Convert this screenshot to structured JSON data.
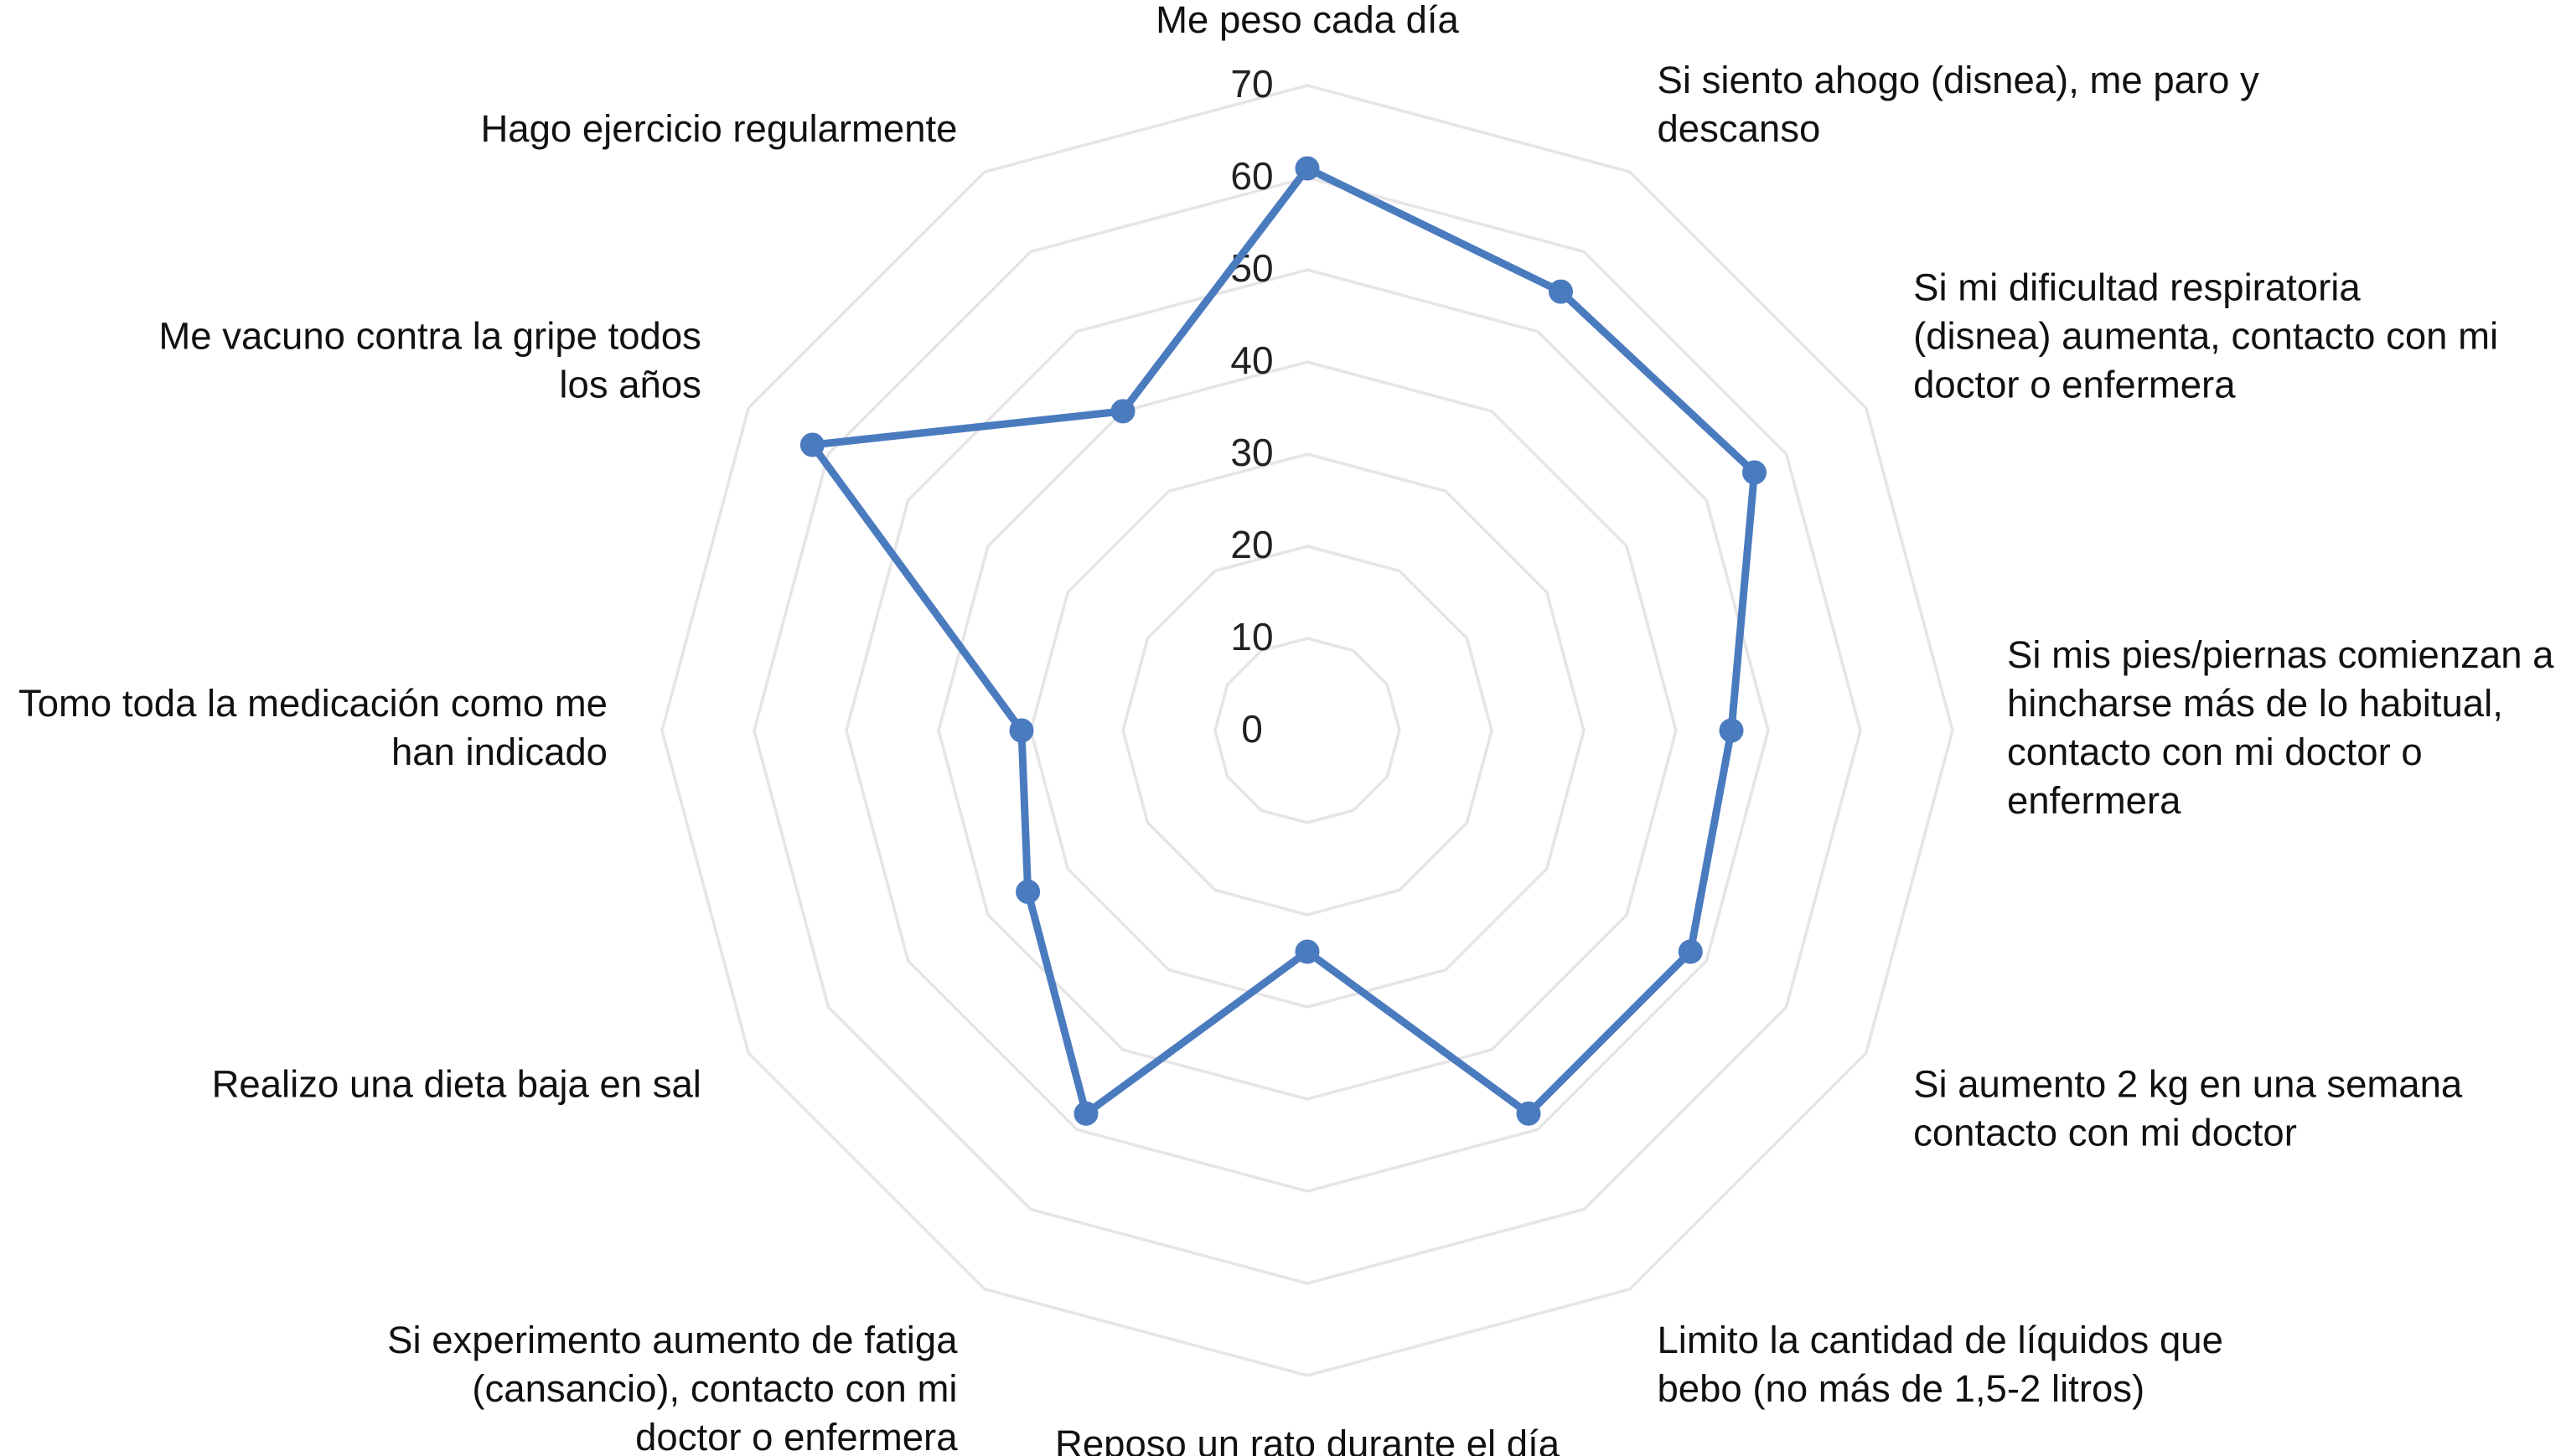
{
  "chart_data": {
    "type": "radar",
    "axis_range": [
      0,
      70
    ],
    "ticks": [
      "0",
      "10",
      "20",
      "30",
      "40",
      "50",
      "60",
      "70"
    ],
    "grid": true,
    "legend": "none",
    "series_color": "#4a7bbf",
    "grid_color": "#e5e5e5",
    "categories": [
      [
        "Me peso cada día"
      ],
      [
        "Si siento ahogo (disnea), me paro y",
        "descanso"
      ],
      [
        "Si mi dificultad respiratoria",
        "(disnea) aumenta, contacto con mi",
        "doctor o enfermera"
      ],
      [
        "Si mis pies/piernas comienzan a",
        "hincharse más de lo habitual,",
        "contacto con mi doctor o",
        "enfermera"
      ],
      [
        "Si aumento 2 kg en una semana",
        "contacto con mi doctor"
      ],
      [
        "Limito la cantidad de líquidos que",
        "bebo (no más de 1,5-2 litros)"
      ],
      [
        "Reposo un rato durante el día"
      ],
      [
        "Si experimento aumento de fatiga",
        "(cansancio), contacto con mi",
        "doctor o enfermera"
      ],
      [
        "Realizo una dieta baja en sal"
      ],
      [
        "Tomo toda la medicación como me",
        "han indicado"
      ],
      [
        "Me vacuno contra la gripe todos",
        "los años"
      ],
      [
        "Hago ejercicio regularmente"
      ]
    ],
    "values": [
      61,
      55,
      56,
      46,
      48,
      48,
      24,
      48,
      35,
      31,
      62,
      40
    ]
  }
}
